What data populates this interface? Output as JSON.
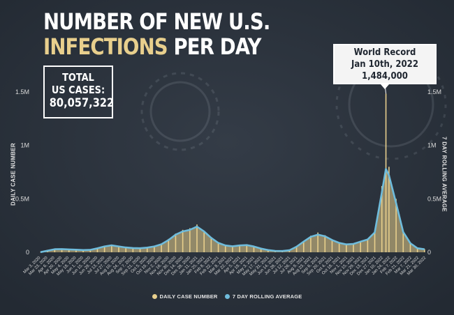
{
  "headline": {
    "line1": "NUMBER OF NEW U.S.",
    "line2_highlight": "INFECTIONS",
    "line2_rest": "PER DAY"
  },
  "total_box": {
    "label": "TOTAL\nUS CASES:",
    "value": "80,057,322"
  },
  "record_box": {
    "line1": "World Record",
    "line2": "Jan 10th, 2022",
    "line3": "1,484,000"
  },
  "colors": {
    "bars": "#e8cf8d",
    "average": "#6fbcdc",
    "background": "#2a313b",
    "text": "#ffffff"
  },
  "chart_data": {
    "type": "bar",
    "ylabel": "DAILY CASE NUMBER",
    "y2label": "7 DAY ROLLING AVERAGE",
    "ylim": [
      0,
      1500000
    ],
    "yticks": [
      "0",
      "0.5M",
      "1M",
      "1.5M"
    ],
    "y2ticks": [
      "0",
      "0.5M",
      "1M",
      "1.5M"
    ],
    "legend": [
      "DAILY CASE NUMBER",
      "7 DAY ROLLING AVERAGE"
    ],
    "legend_position": "bottom-center",
    "grid": false,
    "x_tick_labels": [
      "Mar 3, 2020",
      "Mar 23, 2020",
      "Apr 6, 2020",
      "Apr 20, 2020",
      "May 4, 2020",
      "May 18, 2020",
      "Jun 1, 2020",
      "Jun 15, 2020",
      "Jun 29, 2020",
      "Jul 13, 2020",
      "Jul 27, 2020",
      "Aug 10, 2020",
      "Aug 24, 2020",
      "Sep 7, 2020",
      "Sep 21, 2020",
      "Oct 5, 2020",
      "Oct 19, 2020",
      "Nov 2, 2020",
      "Nov 16, 2020",
      "Nov 30, 2020",
      "Dec 14, 2020",
      "Dec 28, 2020",
      "Jan 11, 2021",
      "Jan 25, 2021",
      "Feb 8, 2021",
      "Feb 22, 2021",
      "Mar 8, 2021",
      "Mar 22, 2021",
      "Apr 5, 2021",
      "Apr 19, 2021",
      "May 3, 2021",
      "May 17, 2021",
      "May 31, 2021",
      "Jun 14, 2021",
      "Jun 28, 2021",
      "Jul 12, 2021",
      "Jul 26, 2021",
      "Aug 9, 2021",
      "Aug 23, 2021",
      "Sep 6, 2021",
      "Sep 20, 2021",
      "Oct 4, 2021",
      "Oct 18, 2021",
      "Nov 1, 2021",
      "Nov 15, 2021",
      "Nov 29, 2021",
      "Dec 13, 2021",
      "Dec 27, 2021",
      "Jan 10, 2022",
      "Jan 24, 2022",
      "Feb 7, 2022",
      "Feb 21, 2022",
      "Mar 7, 2022",
      "Mar 21, 2022",
      "Mar 30, 2022"
    ],
    "series": [
      {
        "name": "DAILY CASE NUMBER",
        "kind": "bar",
        "x": [
          "2020-03-01",
          "2020-03-15",
          "2020-03-29",
          "2020-04-12",
          "2020-04-26",
          "2020-05-10",
          "2020-05-24",
          "2020-06-07",
          "2020-06-21",
          "2020-07-05",
          "2020-07-19",
          "2020-08-02",
          "2020-08-16",
          "2020-08-30",
          "2020-09-13",
          "2020-09-27",
          "2020-10-11",
          "2020-10-25",
          "2020-11-08",
          "2020-11-22",
          "2020-12-06",
          "2020-12-20",
          "2021-01-03",
          "2021-01-17",
          "2021-01-31",
          "2021-02-14",
          "2021-02-28",
          "2021-03-14",
          "2021-03-28",
          "2021-04-11",
          "2021-04-25",
          "2021-05-09",
          "2021-05-23",
          "2021-06-06",
          "2021-06-20",
          "2021-07-04",
          "2021-07-18",
          "2021-08-01",
          "2021-08-15",
          "2021-08-29",
          "2021-09-12",
          "2021-09-26",
          "2021-10-10",
          "2021-10-24",
          "2021-11-07",
          "2021-11-21",
          "2021-12-05",
          "2021-12-19",
          "2022-01-02",
          "2022-01-10",
          "2022-01-16",
          "2022-01-30",
          "2022-02-13",
          "2022-02-27",
          "2022-03-13",
          "2022-03-27"
        ],
        "y": [
          2000,
          20000,
          32000,
          31000,
          28000,
          24000,
          21000,
          25000,
          40000,
          58000,
          68000,
          55000,
          45000,
          40000,
          38000,
          45000,
          58000,
          80000,
          125000,
          175000,
          210000,
          225000,
          260000,
          200000,
          140000,
          90000,
          65000,
          57000,
          66000,
          70000,
          55000,
          35000,
          22000,
          13000,
          12000,
          20000,
          55000,
          105000,
          155000,
          185000,
          160000,
          120000,
          90000,
          75000,
          80000,
          105000,
          125000,
          200000,
          620000,
          1484000,
          800000,
          500000,
          200000,
          90000,
          40000,
          30000
        ]
      },
      {
        "name": "7 DAY ROLLING AVERAGE",
        "kind": "line",
        "x": [
          "2020-03-01",
          "2020-03-15",
          "2020-03-29",
          "2020-04-12",
          "2020-04-26",
          "2020-05-10",
          "2020-05-24",
          "2020-06-07",
          "2020-06-21",
          "2020-07-05",
          "2020-07-19",
          "2020-08-02",
          "2020-08-16",
          "2020-08-30",
          "2020-09-13",
          "2020-09-27",
          "2020-10-11",
          "2020-10-25",
          "2020-11-08",
          "2020-11-22",
          "2020-12-06",
          "2020-12-20",
          "2021-01-03",
          "2021-01-17",
          "2021-01-31",
          "2021-02-14",
          "2021-02-28",
          "2021-03-14",
          "2021-03-28",
          "2021-04-11",
          "2021-04-25",
          "2021-05-09",
          "2021-05-23",
          "2021-06-06",
          "2021-06-20",
          "2021-07-04",
          "2021-07-18",
          "2021-08-01",
          "2021-08-15",
          "2021-08-29",
          "2021-09-12",
          "2021-09-26",
          "2021-10-10",
          "2021-10-24",
          "2021-11-07",
          "2021-11-21",
          "2021-12-05",
          "2021-12-19",
          "2022-01-02",
          "2022-01-10",
          "2022-01-16",
          "2022-01-30",
          "2022-02-13",
          "2022-02-27",
          "2022-03-13",
          "2022-03-27"
        ],
        "y": [
          1500,
          15000,
          29000,
          30000,
          27000,
          24000,
          21000,
          23000,
          37000,
          55000,
          65000,
          55000,
          45000,
          40000,
          38000,
          44000,
          55000,
          75000,
          115000,
          165000,
          195000,
          210000,
          240000,
          195000,
          135000,
          88000,
          64000,
          56000,
          64000,
          67000,
          54000,
          35000,
          21000,
          13000,
          12000,
          19000,
          52000,
          100000,
          145000,
          165000,
          150000,
          115000,
          88000,
          74000,
          78000,
          100000,
          120000,
          185000,
          560000,
          780000,
          720000,
          460000,
          190000,
          85000,
          38000,
          28000
        ]
      }
    ]
  }
}
